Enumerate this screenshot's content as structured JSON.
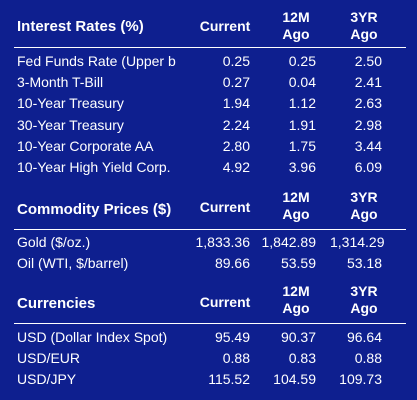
{
  "columns": {
    "current": "Current",
    "m12": "12M\nAgo",
    "yr3": "3YR\nAgo"
  },
  "interest_rates": {
    "title": "Interest Rates (%)",
    "rows": [
      {
        "label": "Fed Funds Rate (Upper b",
        "current": "0.25",
        "m12": "0.25",
        "yr3": "2.50"
      },
      {
        "label": "3-Month T-Bill",
        "current": "0.27",
        "m12": "0.04",
        "yr3": "2.41"
      },
      {
        "label": "10-Year Treasury",
        "current": "1.94",
        "m12": "1.12",
        "yr3": "2.63"
      },
      {
        "label": "30-Year Treasury",
        "current": "2.24",
        "m12": "1.91",
        "yr3": "2.98"
      },
      {
        "label": "10-Year Corporate AA",
        "current": "2.80",
        "m12": "1.75",
        "yr3": "3.44"
      },
      {
        "label": "10-Year High Yield Corp.",
        "current": "4.92",
        "m12": "3.96",
        "yr3": "6.09"
      }
    ]
  },
  "commodity_prices": {
    "title": "Commodity Prices ($)",
    "rows": [
      {
        "label": "Gold    ($/oz.)",
        "current": "1,833.36",
        "m12": "1,842.89",
        "yr3": "1,314.29"
      },
      {
        "label": "Oil (WTI, $/barrel)",
        "current": "89.66",
        "m12": "53.59",
        "yr3": "53.18"
      }
    ]
  },
  "currencies": {
    "title": "Currencies",
    "rows": [
      {
        "label": "USD (Dollar Index Spot)",
        "current": "95.49",
        "m12": "90.37",
        "yr3": "96.64"
      },
      {
        "label": "USD/EUR",
        "current": "0.88",
        "m12": "0.83",
        "yr3": "0.88"
      },
      {
        "label": "USD/JPY",
        "current": "115.52",
        "m12": "104.59",
        "yr3": "109.73"
      }
    ]
  }
}
